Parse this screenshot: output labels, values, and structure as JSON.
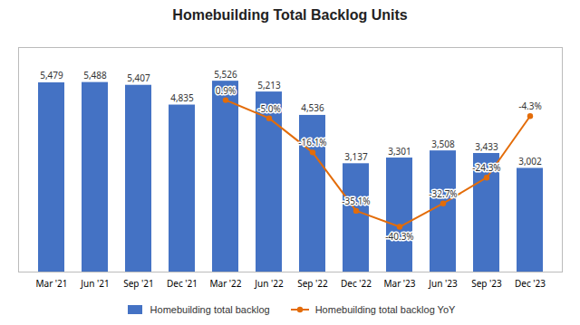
{
  "chart_data": {
    "type": "bar",
    "title": "Homebuilding Total Backlog Units",
    "categories": [
      "Mar '21",
      "Jun '21",
      "Sep '21",
      "Dec '21",
      "Mar '22",
      "Jun '22",
      "Sep '22",
      "Dec '22",
      "Mar '23",
      "Jun '23",
      "Sep '23",
      "Dec '23"
    ],
    "series": [
      {
        "name": "Homebuilding total backlog",
        "type": "bar",
        "color": "#4472C4",
        "values": [
          5479,
          5488,
          5407,
          4835,
          5526,
          5213,
          4536,
          3137,
          3301,
          3508,
          3433,
          3002
        ],
        "value_labels": [
          "5,479",
          "5,488",
          "5,407",
          "4,835",
          "5,526",
          "5,213",
          "4,536",
          "3,137",
          "3,301",
          "3,508",
          "3,433",
          "3,002"
        ]
      },
      {
        "name": "Homebuilding total backlog YoY",
        "type": "line",
        "color": "#E36C09",
        "axis": "y2",
        "marker": "circle",
        "values": [
          null,
          null,
          null,
          null,
          0.9,
          -5.0,
          -16.1,
          -35.1,
          -40.3,
          -32.7,
          -24.3,
          -4.3
        ],
        "value_labels": [
          null,
          null,
          null,
          null,
          "0.9%",
          "-5.0%",
          "-16.1%",
          "-35.1%",
          "-40.3%",
          "-32.7%",
          "-24.3%",
          "-4.3%"
        ]
      }
    ],
    "ylim": [
      0,
      6500
    ],
    "y2lim": [
      -55,
      18
    ],
    "data_labels": true,
    "tick_labels": "x",
    "grid": false,
    "legend": "bottom"
  }
}
